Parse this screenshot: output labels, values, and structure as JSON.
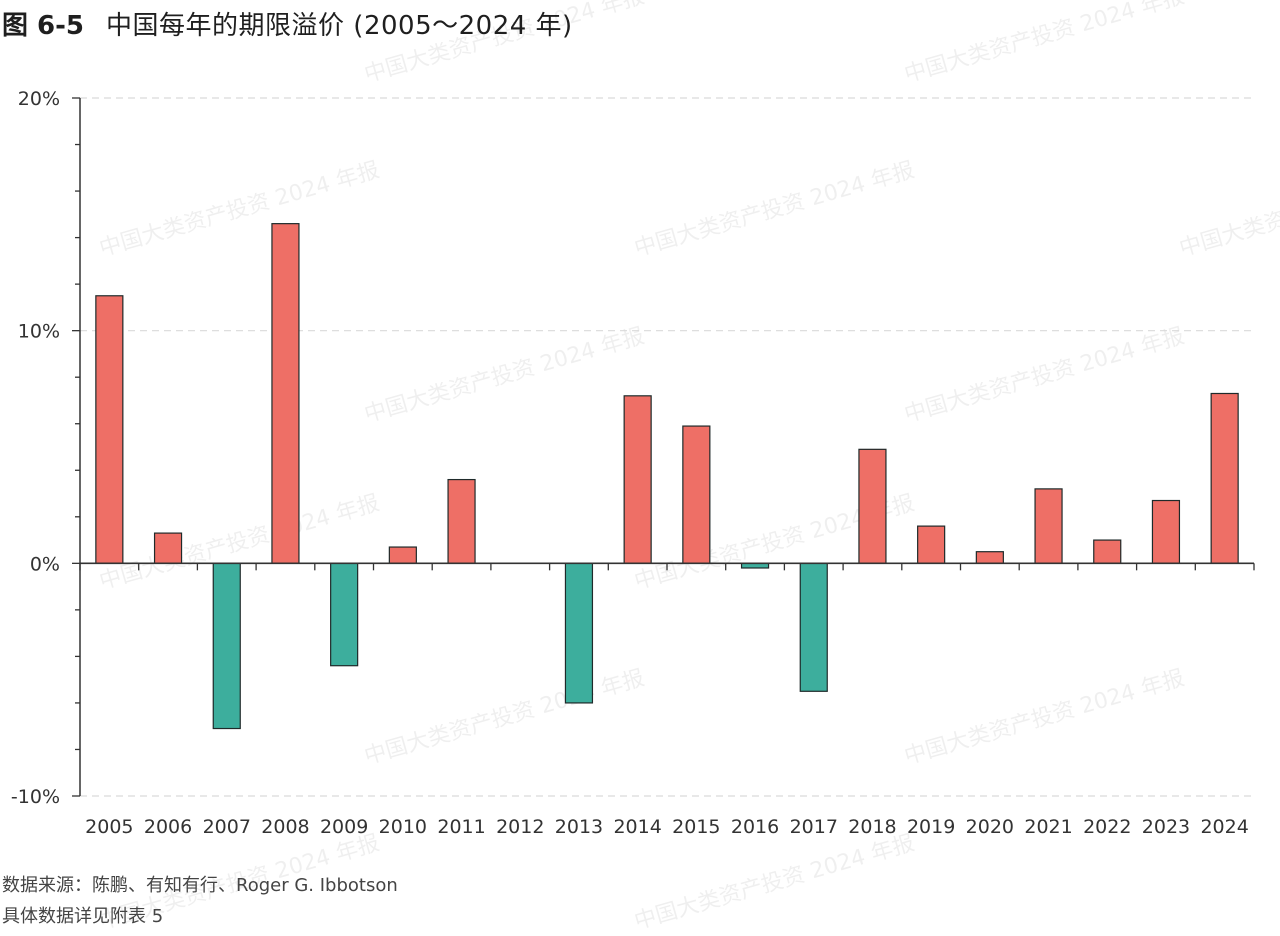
{
  "figure_label": "图 6-5",
  "title": "中国每年的期限溢价 (2005～2024 年)",
  "source": "数据来源：陈鹏、有知有行、Roger G. Ibbotson",
  "note": "具体数据详见附表 5",
  "watermark": "中国大类资产投资 2024 年报",
  "colors": {
    "positive": "#ee6f66",
    "negative": "#3dae9d",
    "bar_stroke": "#1f2a2a",
    "grid": "#d9d9d9",
    "axis": "#333333"
  },
  "chart_data": {
    "type": "bar",
    "title": "中国每年的期限溢价 (2005～2024 年)",
    "xlabel": "",
    "ylabel": "",
    "unit": "%",
    "ylim": [
      -10,
      20
    ],
    "yticks": [
      -10,
      0,
      10,
      20
    ],
    "ytick_labels": [
      "-10%",
      "0%",
      "10%",
      "20%"
    ],
    "grid": "horizontal dashed",
    "categories": [
      "2005",
      "2006",
      "2007",
      "2008",
      "2009",
      "2010",
      "2011",
      "2012",
      "2013",
      "2014",
      "2015",
      "2016",
      "2017",
      "2018",
      "2019",
      "2020",
      "2021",
      "2022",
      "2023",
      "2024"
    ],
    "values": [
      11.5,
      1.3,
      -7.1,
      14.6,
      -4.4,
      0.7,
      3.6,
      0.0,
      -6.0,
      7.2,
      5.9,
      -0.2,
      -5.5,
      4.9,
      1.6,
      0.5,
      3.2,
      1.0,
      2.7,
      7.3
    ]
  }
}
